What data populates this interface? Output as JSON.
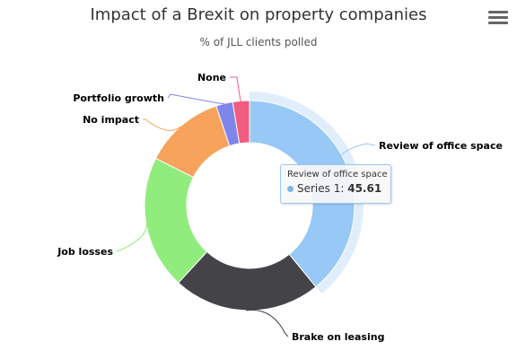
{
  "chart_data": {
    "type": "pie",
    "title": "Impact of a Brexit on property companies",
    "subtitle": "% of JLL clients polled",
    "series_name": "Series 1",
    "slices": [
      {
        "name": "Review of office space",
        "value": 45.61,
        "color": "#97C8F6"
      },
      {
        "name": "Brake on leasing",
        "value": 26.5,
        "color": "#434348"
      },
      {
        "name": "Job losses",
        "value": 24.0,
        "color": "#90ED7D"
      },
      {
        "name": "No impact",
        "value": 14.5,
        "color": "#F7A35C"
      },
      {
        "name": "Portfolio growth",
        "value": 3.0,
        "color": "#8085E9"
      },
      {
        "name": "None",
        "value": 3.0,
        "color": "#F15C80"
      }
    ],
    "highlighted_index": 0
  },
  "tooltip": {
    "header": "Review of office space",
    "series_label": "Series 1",
    "value": "45.61",
    "dot_color": "#7CB5EC"
  },
  "menu": {
    "icon": "hamburger-menu-icon"
  }
}
